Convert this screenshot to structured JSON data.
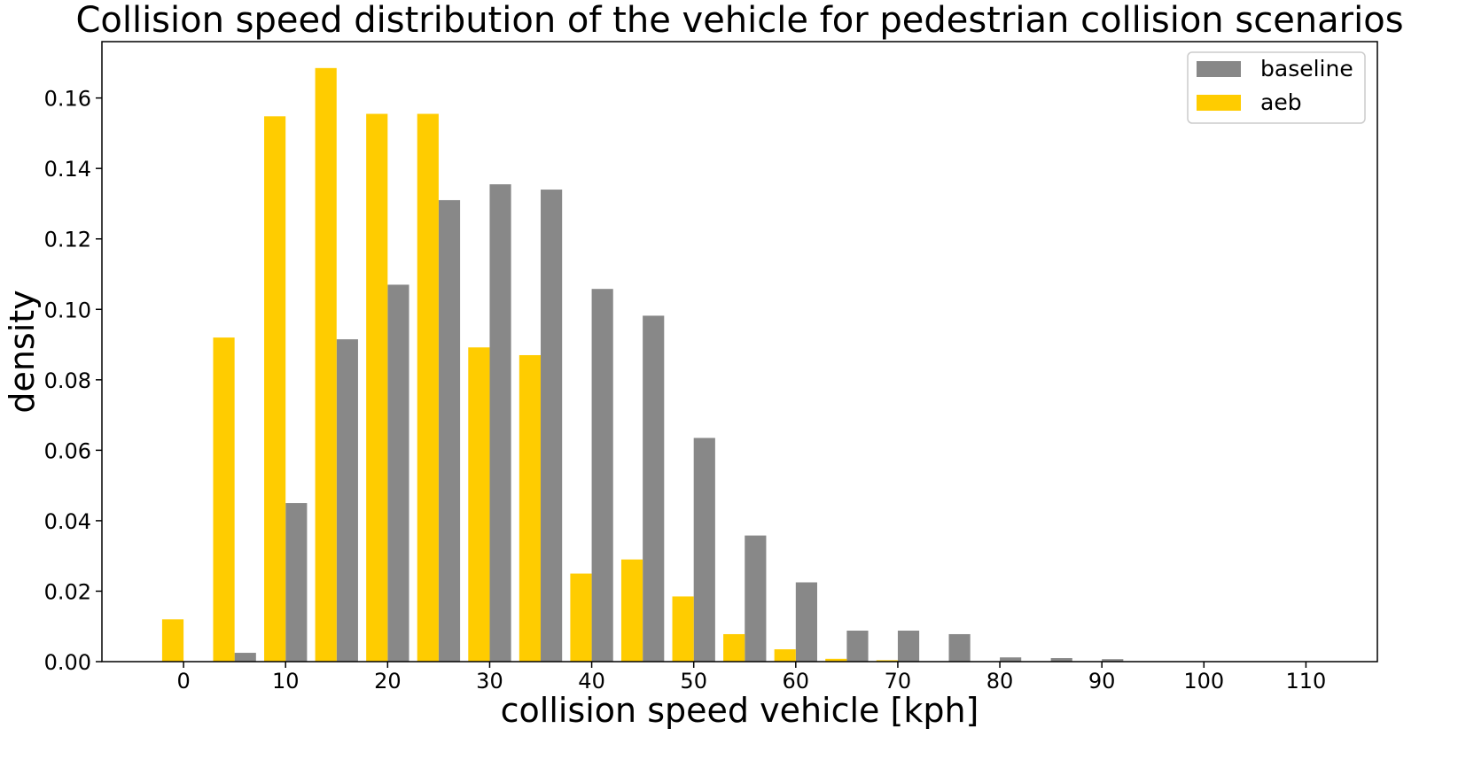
{
  "chart_data": {
    "type": "bar",
    "title": "Collision speed distribution of the vehicle for pedestrian collision scenarios",
    "xlabel": "collision speed vehicle [kph]",
    "ylabel": "density",
    "xlim": [
      -8,
      117
    ],
    "ylim": [
      0,
      0.176
    ],
    "xticks": [
      0,
      10,
      20,
      30,
      40,
      50,
      60,
      70,
      80,
      90,
      100,
      110
    ],
    "xtick_labels": [
      "0",
      "10",
      "20",
      "30",
      "40",
      "50",
      "60",
      "70",
      "80",
      "90",
      "100",
      "110"
    ],
    "yticks": [
      0.0,
      0.02,
      0.04,
      0.06,
      0.08,
      0.1,
      0.12,
      0.14,
      0.16
    ],
    "ytick_labels": [
      "0.00",
      "0.02",
      "0.04",
      "0.06",
      "0.08",
      "0.10",
      "0.12",
      "0.14",
      "0.16"
    ],
    "grid": false,
    "legend_position": "top-right",
    "bin_centers": [
      0,
      5,
      10,
      15,
      20,
      25,
      30,
      35,
      40,
      45,
      50,
      55,
      60,
      65,
      70,
      75,
      80,
      85,
      90,
      95,
      100,
      105,
      110
    ],
    "series": [
      {
        "name": "baseline",
        "color": "#888888",
        "values": [
          0,
          0.0025,
          0.045,
          0.0915,
          0.107,
          0.131,
          0.1355,
          0.134,
          0.1058,
          0.0982,
          0.0635,
          0.0358,
          0.0225,
          0.0088,
          0.0088,
          0.0078,
          0.0012,
          0.001,
          0.0007,
          0,
          0,
          0,
          0
        ]
      },
      {
        "name": "aeb",
        "color": "#FFCC00",
        "values": [
          0.012,
          0.092,
          0.1548,
          0.1685,
          0.1555,
          0.1555,
          0.0892,
          0.087,
          0.025,
          0.029,
          0.0185,
          0.0078,
          0.0035,
          0.0008,
          0.0004,
          0,
          0,
          0,
          0,
          0,
          0,
          0,
          0
        ]
      }
    ]
  }
}
